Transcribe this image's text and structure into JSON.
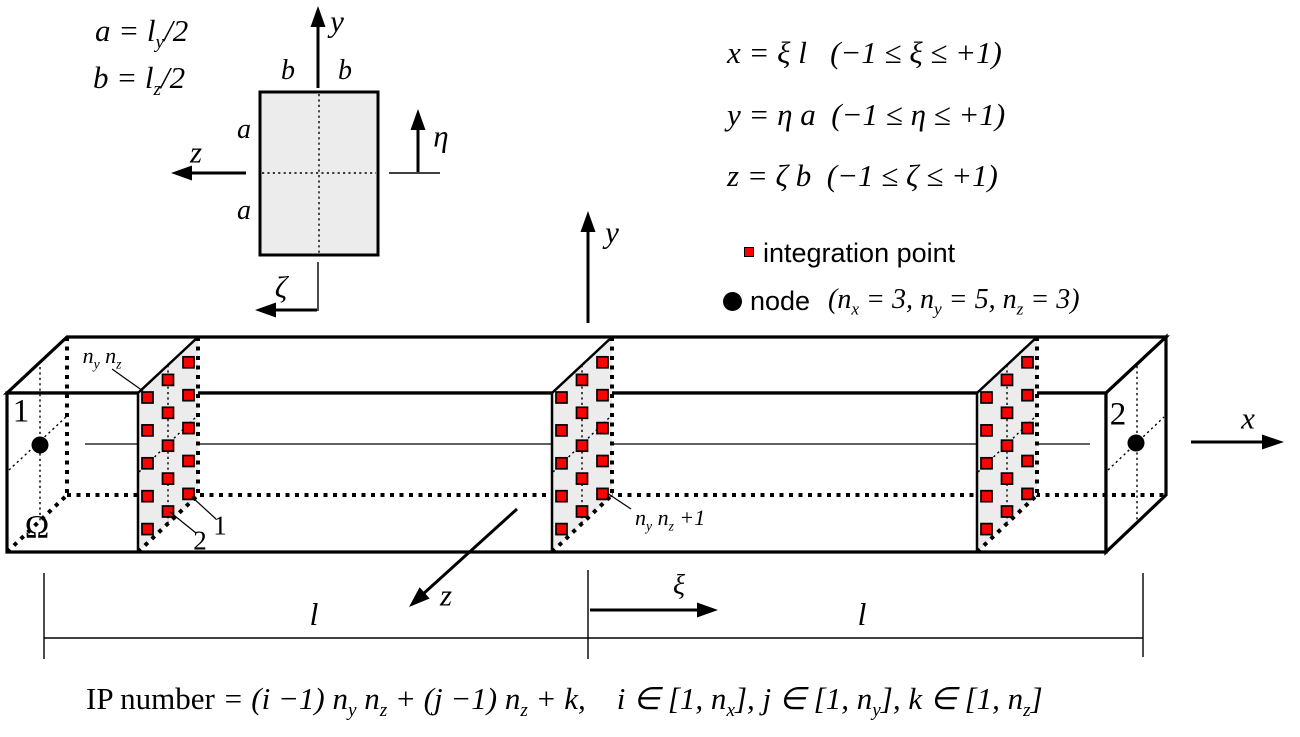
{
  "colors": {
    "ink": "#000000",
    "ip_red": "#fe0000",
    "panel_gray": "#ececec",
    "face_white": "#ffffff"
  },
  "cross_section": {
    "def_a": "a = l_y/2",
    "def_b": "b = l_z/2",
    "b_left": "b",
    "b_right": "b",
    "a_top": "a",
    "a_bottom": "a",
    "axis_y": "y",
    "axis_z": "z",
    "axis_eta": "η",
    "axis_zeta": "ζ"
  },
  "equations": {
    "x_line": "x = ξ l   (−1 ≤ ξ ≤ +1)",
    "y_line": "y = η a  (−1 ≤ η ≤ +1)",
    "z_line": "z = ζ b  (−1 ≤ ζ ≤ +1)"
  },
  "legend": {
    "marker_ip_icon": "red-square",
    "integration_point": "integration point",
    "marker_node_icon": "black-circle",
    "node": "node",
    "node_counts": "(n_x = 3, n_y = 5, n_z = 3)"
  },
  "beam": {
    "node_1": "1",
    "node_2": "2",
    "domain": "Ω",
    "axis_x": "x",
    "axis_y": "y",
    "axis_z": "z",
    "axis_xi": "ξ",
    "length_left": "l",
    "length_right": "l",
    "ip_corner_label": "n_y n_z",
    "ip_label_1": "1",
    "ip_label_2": "2",
    "ip_next_plane_label": "n_y n_z +1"
  },
  "integration_points": {
    "nx": 3,
    "ny": 5,
    "nz": 3
  },
  "formula": {
    "prefix": "IP number ",
    "body": "= (i −1) n_y n_z + (j −1) n_z + k,    i ∈ [1, n_x], j ∈ [1, n_y], k ∈ [1, n_z]"
  }
}
